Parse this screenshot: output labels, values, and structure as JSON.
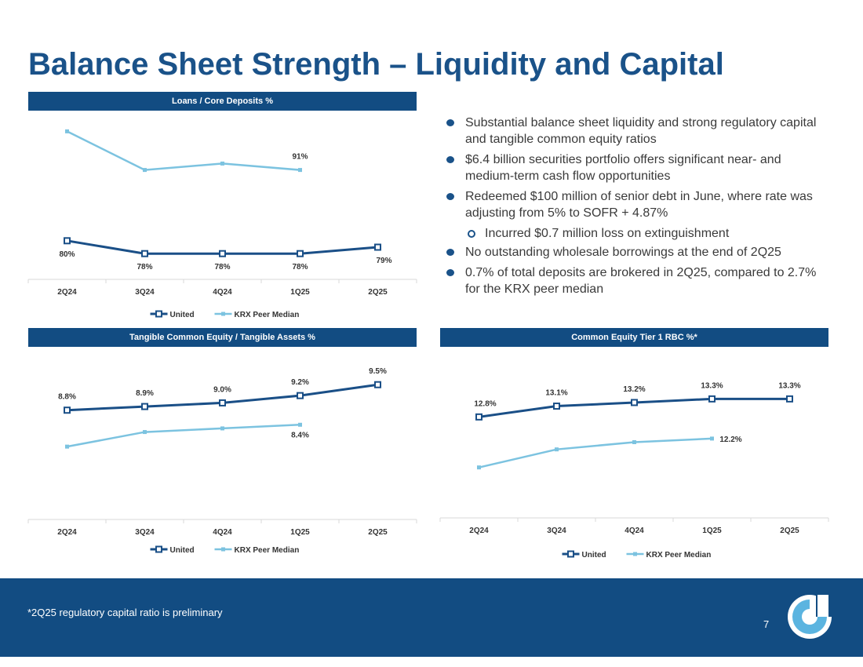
{
  "title": "Balance Sheet Strength – Liquidity and Capital",
  "bullets": [
    {
      "text": "Substantial balance sheet liquidity and strong regulatory capital and tangible common equity ratios",
      "level": 1
    },
    {
      "text": "$6.4 billion securities portfolio offers significant near- and medium-term cash flow opportunities",
      "level": 1
    },
    {
      "text": "Redeemed $100 million of senior debt in June, where rate was adjusting from 5% to SOFR + 4.87%",
      "level": 1
    },
    {
      "text": "Incurred $0.7 million loss on extinguishment",
      "level": 2
    },
    {
      "text": "No outstanding wholesale borrowings at the end of 2Q25",
      "level": 1
    },
    {
      "text": "0.7% of total deposits are brokered in 2Q25, compared to 2.7% for the KRX peer median",
      "level": 1
    }
  ],
  "footer": {
    "footnote": "*2Q25 regulatory capital ratio is preliminary",
    "page_number": "7"
  },
  "colors": {
    "brand": "#124c82",
    "united": "#1a4f87",
    "peer": "#7cc3e0"
  },
  "chart_data": [
    {
      "id": "loans",
      "type": "line",
      "title": "Loans / Core Deposits %",
      "categories": [
        "2Q24",
        "3Q24",
        "4Q24",
        "1Q25",
        "2Q25"
      ],
      "ylim": [
        74,
        99
      ],
      "series": [
        {
          "name": "United",
          "values": [
            80,
            78,
            78,
            78,
            79
          ],
          "labels": [
            "80%",
            "78%",
            "78%",
            "78%",
            "79%"
          ],
          "label_indices": [
            0,
            1,
            2,
            3,
            4
          ]
        },
        {
          "name": "KRX Peer Median",
          "values": [
            97,
            91,
            92,
            91,
            null
          ],
          "labels": [
            "",
            "",
            "",
            "91%",
            ""
          ],
          "label_indices": [
            3
          ]
        }
      ]
    },
    {
      "id": "tce",
      "type": "line",
      "title": "Tangible Common Equity / Tangible Assets %",
      "categories": [
        "2Q24",
        "3Q24",
        "4Q24",
        "1Q25",
        "2Q25"
      ],
      "ylim": [
        5.8,
        10.0
      ],
      "series": [
        {
          "name": "United",
          "values": [
            8.8,
            8.9,
            9.0,
            9.2,
            9.5
          ],
          "labels": [
            "8.8%",
            "8.9%",
            "9.0%",
            "9.2%",
            "9.5%"
          ],
          "label_indices": [
            0,
            1,
            2,
            3,
            4
          ]
        },
        {
          "name": "KRX Peer Median",
          "values": [
            7.8,
            8.2,
            8.3,
            8.4,
            null
          ],
          "labels": [
            "",
            "",
            "",
            "8.4%",
            ""
          ],
          "label_indices": [
            3
          ]
        }
      ]
    },
    {
      "id": "cet1",
      "type": "line",
      "title": "Common Equity Tier 1 RBC %*",
      "categories": [
        "2Q24",
        "3Q24",
        "4Q24",
        "1Q25",
        "2Q25"
      ],
      "ylim": [
        10.0,
        14.2
      ],
      "series": [
        {
          "name": "United",
          "values": [
            12.8,
            13.1,
            13.2,
            13.3,
            13.3
          ],
          "labels": [
            "12.8%",
            "13.1%",
            "13.2%",
            "13.3%",
            "13.3%"
          ],
          "label_indices": [
            0,
            1,
            2,
            3,
            4
          ]
        },
        {
          "name": "KRX Peer Median",
          "values": [
            11.4,
            11.9,
            12.1,
            12.2,
            null
          ],
          "labels": [
            "",
            "",
            "",
            "12.2%",
            ""
          ],
          "label_indices": [
            3
          ]
        }
      ]
    }
  ]
}
